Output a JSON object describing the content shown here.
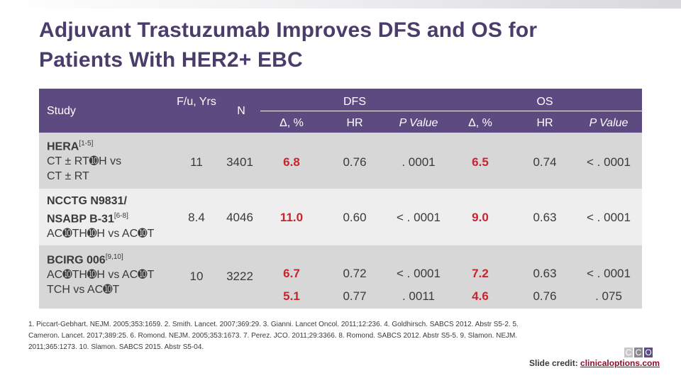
{
  "title": "Adjuvant Trastuzumab Improves DFS and OS for Patients With HER2+ EBC",
  "headers": {
    "study": "Study",
    "fu": "F/u, Yrs",
    "n": "N",
    "dfs": "DFS",
    "os": "OS",
    "delta": "Δ, %",
    "hr": "HR",
    "pvalue": "P Value"
  },
  "rows": [
    {
      "study_name": "HERA",
      "study_ref": "[1-5]",
      "study_lines": [
        "CT ± RT➓H vs",
        "CT ± RT"
      ],
      "fu": "11",
      "n": "3401",
      "dfs_delta": "6.8",
      "dfs_hr": "0.76",
      "dfs_p": ". 0001",
      "os_delta": "6.5",
      "os_hr": "0.74",
      "os_p": "< . 0001"
    },
    {
      "study_name": "NCCTG N9831/",
      "study_name2": "NSABP B-31",
      "study_ref": "[6-8]",
      "study_lines": [
        "AC➓TH➓H vs AC➓T"
      ],
      "fu": "8.4",
      "n": "4046",
      "dfs_delta": "11.0",
      "dfs_hr": "0.60",
      "dfs_p": "< . 0001",
      "os_delta": "9.0",
      "os_hr": "0.63",
      "os_p": "< . 0001"
    },
    {
      "study_name": "BCIRG 006",
      "study_ref": "[9,10]",
      "study_lines": [
        "AC➓TH➓H vs AC➓T",
        "TCH vs AC➓T"
      ],
      "fu": "10",
      "n": "3222",
      "dfs_delta": [
        "6.7",
        "5.1"
      ],
      "dfs_hr": [
        "0.72",
        "0.77"
      ],
      "dfs_p": [
        "< . 0001",
        ". 0011"
      ],
      "os_delta": [
        "7.2",
        "4.6"
      ],
      "os_hr": [
        "0.63",
        "0.76"
      ],
      "os_p": [
        "< . 0001",
        ". 075"
      ]
    }
  ],
  "references": "1. Piccart-Gebhart. NEJM. 2005;353:1659. 2. Smith. Lancet. 2007;369:29. 3. Gianni. Lancet Oncol. 2011;12:236. 4. Goldhirsch. SABCS 2012. Abstr S5-2. 5. Cameron. Lancet. 2017;389:25. 6. Romond. NEJM. 2005;353:1673. 7. Perez. JCO. 2011;29:3366. 8. Romond. SABCS 2012. Abstr S5-5. 9. Slamon. NEJM. 2011;365:1273. 10. Slamon. SABCS 2015. Abstr S5-04.",
  "logo": [
    "C",
    "C",
    "O"
  ],
  "credit_label": "Slide credit: ",
  "credit_link": "clinicaloptions.com",
  "colors": {
    "header_bg": "#5c4a80",
    "title": "#4a3d6b",
    "highlight_red": "#c6252e",
    "row_dark": "#d7d7d8",
    "row_light": "#eeeeef"
  }
}
